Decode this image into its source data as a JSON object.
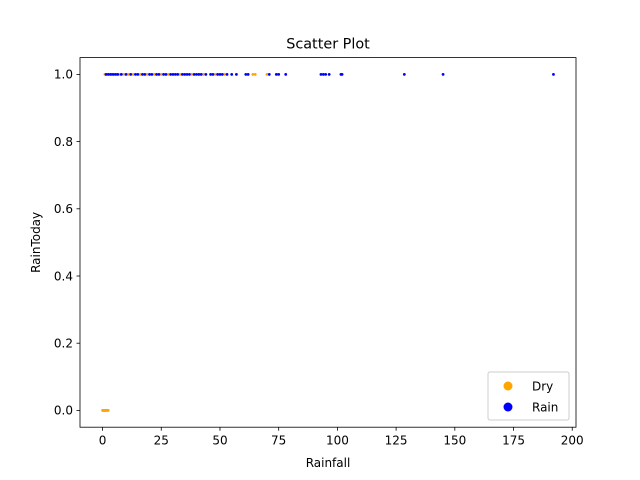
{
  "chart_data": {
    "type": "scatter",
    "title": "Scatter Plot",
    "xlabel": "Rainfall",
    "ylabel": "RainToday",
    "xlim": [
      -9.6,
      201.6
    ],
    "ylim": [
      -0.05,
      1.05
    ],
    "xticks": [
      0,
      25,
      50,
      75,
      100,
      125,
      150,
      175,
      200
    ],
    "yticks": [
      0.0,
      0.2,
      0.4,
      0.6,
      0.8,
      1.0
    ],
    "grid": false,
    "legend_position": "lower-right",
    "series": [
      {
        "name": "Dry",
        "color": "#ffa500",
        "points": [
          [
            0.0,
            0
          ],
          [
            0.2,
            0
          ],
          [
            0.4,
            0
          ],
          [
            0.6,
            0
          ],
          [
            0.8,
            0
          ],
          [
            1.0,
            0
          ],
          [
            1.2,
            0
          ],
          [
            1.4,
            0
          ],
          [
            1.6,
            0
          ],
          [
            1.8,
            0
          ],
          [
            2.2,
            0
          ],
          [
            2.4,
            0
          ],
          [
            1.0,
            1
          ],
          [
            2.0,
            1
          ],
          [
            3.0,
            1
          ],
          [
            4.0,
            1
          ],
          [
            5.0,
            1
          ],
          [
            6.0,
            1
          ],
          [
            7.5,
            1
          ],
          [
            9.0,
            1
          ],
          [
            11.0,
            1
          ],
          [
            13.0,
            1
          ],
          [
            16.0,
            1
          ],
          [
            19.0,
            1
          ],
          [
            22.0,
            1
          ],
          [
            25.0,
            1
          ],
          [
            28.0,
            1
          ],
          [
            33.0,
            1
          ],
          [
            38.0,
            1
          ],
          [
            43.0,
            1
          ],
          [
            48.0,
            1
          ],
          [
            52.0,
            1
          ],
          [
            64.0,
            1
          ],
          [
            65.0,
            1
          ],
          [
            70.0,
            1
          ]
        ]
      },
      {
        "name": "Rain",
        "color": "#0000ff",
        "points": [
          [
            1.5,
            1
          ],
          [
            2.5,
            1
          ],
          [
            3.5,
            1
          ],
          [
            4.5,
            1
          ],
          [
            5.5,
            1
          ],
          [
            6.5,
            1
          ],
          [
            8.0,
            1
          ],
          [
            10.0,
            1
          ],
          [
            12.0,
            1
          ],
          [
            14.0,
            1
          ],
          [
            15.0,
            1
          ],
          [
            17.0,
            1
          ],
          [
            18.0,
            1
          ],
          [
            20.0,
            1
          ],
          [
            21.0,
            1
          ],
          [
            23.0,
            1
          ],
          [
            24.0,
            1
          ],
          [
            26.0,
            1
          ],
          [
            27.0,
            1
          ],
          [
            29.0,
            1
          ],
          [
            30.0,
            1
          ],
          [
            31.0,
            1
          ],
          [
            32.0,
            1
          ],
          [
            34.0,
            1
          ],
          [
            35.0,
            1
          ],
          [
            36.0,
            1
          ],
          [
            37.0,
            1
          ],
          [
            39.0,
            1
          ],
          [
            40.0,
            1
          ],
          [
            41.0,
            1
          ],
          [
            42.0,
            1
          ],
          [
            44.0,
            1
          ],
          [
            46.0,
            1
          ],
          [
            47.0,
            1
          ],
          [
            49.0,
            1
          ],
          [
            50.0,
            1
          ],
          [
            51.0,
            1
          ],
          [
            53.0,
            1
          ],
          [
            55.0,
            1
          ],
          [
            57.0,
            1
          ],
          [
            61.0,
            1
          ],
          [
            62.0,
            1
          ],
          [
            71.0,
            1
          ],
          [
            74.0,
            1
          ],
          [
            75.0,
            1
          ],
          [
            78.0,
            1
          ],
          [
            93.0,
            1
          ],
          [
            94.0,
            1
          ],
          [
            95.0,
            1
          ],
          [
            96.5,
            1
          ],
          [
            101.5,
            1
          ],
          [
            102.0,
            1
          ],
          [
            128.5,
            1
          ],
          [
            145.0,
            1
          ],
          [
            192.0,
            1
          ]
        ]
      }
    ]
  }
}
